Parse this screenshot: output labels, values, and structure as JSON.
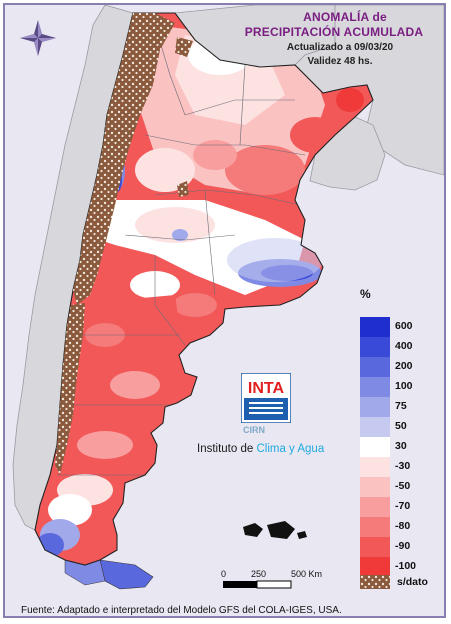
{
  "title": {
    "line1": "ANOMALÍA de",
    "line2": "PRECIPITACIÓN ACUMULADA",
    "updated": "Actualizado a 09/03/20",
    "validity": "Validez 48 hs."
  },
  "legend": {
    "unit": "%",
    "items": [
      {
        "label": "600",
        "color": "#1f2fcf"
      },
      {
        "label": "400",
        "color": "#3a4ad8"
      },
      {
        "label": "200",
        "color": "#5a68de"
      },
      {
        "label": "100",
        "color": "#7f8ae4"
      },
      {
        "label": "75",
        "color": "#a2a9ea"
      },
      {
        "label": "50",
        "color": "#c6caf1"
      },
      {
        "label": "30",
        "color": "#ffffff"
      },
      {
        "label": "-30",
        "color": "#fde2e2"
      },
      {
        "label": "-50",
        "color": "#fbc2c2"
      },
      {
        "label": "-70",
        "color": "#f89e9e"
      },
      {
        "label": "-80",
        "color": "#f57a7a"
      },
      {
        "label": "-90",
        "color": "#f25858"
      },
      {
        "label": "-100",
        "color": "#f03a3a"
      }
    ],
    "nodata_label": "s/dato"
  },
  "scale": {
    "labels": [
      "0",
      "250",
      "500 Km"
    ]
  },
  "logo": {
    "inta": "INTA",
    "cirn": "CIRN",
    "institute_prefix": "Instituto de ",
    "institute_accent": "Clima y Agua"
  },
  "source": "Fuente: Adaptado e interpretado del Modelo GFS del COLA-IGES, USA.",
  "colors": {
    "title": "#7a1e82",
    "frame": "#8a7db0",
    "background": "#e9e8f2",
    "nodata_brown": "#8b5a3c"
  }
}
